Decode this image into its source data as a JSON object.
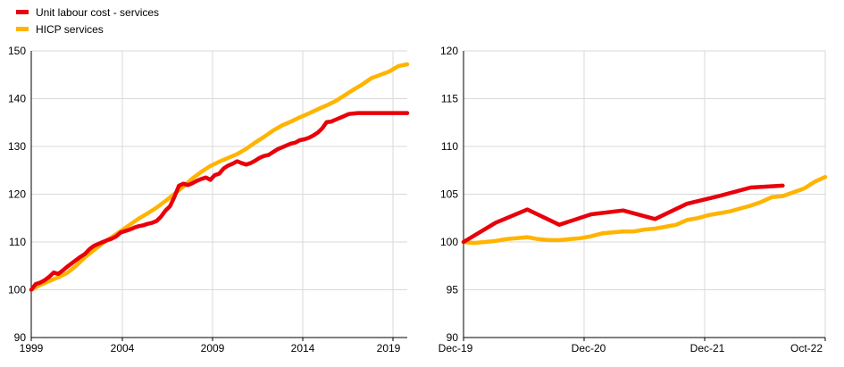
{
  "legend": [
    {
      "label": "Unit labour cost - services",
      "color": "#e8000b"
    },
    {
      "label": "HICP services",
      "color": "#ffb400"
    }
  ],
  "chart_data": [
    {
      "type": "line",
      "title": "",
      "xlabel": "",
      "ylabel": "",
      "x_ticks": [
        "1999",
        "2004",
        "2009",
        "2014",
        "2019"
      ],
      "xlim": [
        1999.0,
        2020.0
      ],
      "ylim": [
        90,
        150
      ],
      "y_ticks": [
        90,
        100,
        110,
        120,
        130,
        140,
        150
      ],
      "grid": true,
      "series": [
        {
          "name": "Unit labour cost - services",
          "color": "#e8000b",
          "x": [
            1999.0,
            1999.25,
            1999.5,
            1999.75,
            2000.0,
            2000.25,
            2000.5,
            2000.75,
            2001.0,
            2001.25,
            2001.5,
            2001.75,
            2002.0,
            2002.25,
            2002.5,
            2002.75,
            2003.0,
            2003.25,
            2003.5,
            2003.75,
            2004.0,
            2004.25,
            2004.5,
            2004.75,
            2005.0,
            2005.25,
            2005.5,
            2005.75,
            2006.0,
            2006.25,
            2006.5,
            2006.75,
            2007.0,
            2007.25,
            2007.5,
            2007.75,
            2008.0,
            2008.25,
            2008.5,
            2008.75,
            2009.0,
            2009.25,
            2009.5,
            2009.75,
            2010.0,
            2010.25,
            2010.5,
            2010.75,
            2011.0,
            2011.25,
            2011.5,
            2011.75,
            2012.0,
            2012.25,
            2012.5,
            2012.75,
            2013.0,
            2013.25,
            2013.5,
            2013.75,
            2014.0,
            2014.25,
            2014.5,
            2014.75,
            2015.0,
            2015.25,
            2015.5,
            2015.75,
            2016.0,
            2016.25,
            2016.5,
            2016.75,
            2017.0,
            2017.25,
            2017.5,
            2017.75,
            2018.0,
            2018.25,
            2018.5,
            2018.75,
            2019.0,
            2019.25,
            2019.5,
            2019.75,
            2020.0
          ],
          "y": [
            100.0,
            101.2,
            101.5,
            102.0,
            102.7,
            103.6,
            103.3,
            104.0,
            104.8,
            105.5,
            106.2,
            106.9,
            107.5,
            108.5,
            109.2,
            109.6,
            110.0,
            110.4,
            110.7,
            111.2,
            112.0,
            112.3,
            112.6,
            113.0,
            113.3,
            113.5,
            113.8,
            114.0,
            114.4,
            115.3,
            116.6,
            117.5,
            119.5,
            121.8,
            122.2,
            121.9,
            122.3,
            122.8,
            123.2,
            123.5,
            123.0,
            124.0,
            124.3,
            125.4,
            126.0,
            126.4,
            126.9,
            126.5,
            126.2,
            126.5,
            127.0,
            127.6,
            128.0,
            128.2,
            128.8,
            129.4,
            129.8,
            130.2,
            130.6,
            130.8,
            131.3,
            131.5,
            131.8,
            132.3,
            132.9,
            133.8,
            135.1,
            135.2,
            135.6,
            136.0,
            136.4,
            136.8,
            136.9,
            137.0,
            137.0,
            137.0,
            137.0,
            137.0,
            137.0,
            137.0,
            137.0,
            137.0,
            137.0,
            137.0,
            137.0
          ]
        },
        {
          "name": "HICP services",
          "color": "#ffb400",
          "x": [
            1999.0,
            1999.5,
            2000.0,
            2000.5,
            2001.0,
            2001.5,
            2002.0,
            2002.5,
            2003.0,
            2003.5,
            2004.0,
            2004.5,
            2005.0,
            2005.5,
            2006.0,
            2006.5,
            2007.0,
            2007.5,
            2008.0,
            2008.5,
            2009.0,
            2009.5,
            2010.0,
            2010.5,
            2011.0,
            2011.5,
            2012.0,
            2012.5,
            2013.0,
            2013.5,
            2014.0,
            2014.5,
            2015.0,
            2015.5,
            2016.0,
            2016.5,
            2017.0,
            2017.5,
            2018.0,
            2018.5,
            2019.0,
            2019.5,
            2020.0
          ],
          "y": [
            100.0,
            101.0,
            101.8,
            102.6,
            103.5,
            105.0,
            106.8,
            108.3,
            109.8,
            111.0,
            112.3,
            113.6,
            114.9,
            116.0,
            117.2,
            118.6,
            120.1,
            121.6,
            123.3,
            124.7,
            125.9,
            126.8,
            127.6,
            128.4,
            129.5,
            130.8,
            132.0,
            133.3,
            134.4,
            135.2,
            136.1,
            136.9,
            137.8,
            138.6,
            139.5,
            140.7,
            141.9,
            143.0,
            144.3,
            145.0,
            145.7,
            146.8,
            147.2
          ]
        }
      ]
    },
    {
      "type": "line",
      "title": "",
      "xlabel": "",
      "ylabel": "",
      "x_ticks": [
        "Dec-19",
        "Dec-20",
        "Dec-21",
        "Oct-22"
      ],
      "xlim": [
        "2019-12",
        "2022-10"
      ],
      "ylim": [
        90,
        120
      ],
      "y_ticks": [
        90,
        95,
        100,
        105,
        110,
        115,
        120
      ],
      "grid": true,
      "series": [
        {
          "name": "Unit labour cost - services",
          "color": "#e8000b",
          "x": [
            "2019-12",
            "2020-03",
            "2020-06",
            "2020-09",
            "2020-12",
            "2021-03",
            "2021-06",
            "2021-09",
            "2021-12",
            "2022-03",
            "2022-06"
          ],
          "y": [
            100.0,
            102.0,
            103.4,
            101.8,
            102.9,
            103.3,
            102.4,
            104.0,
            104.8,
            105.7,
            105.9
          ]
        },
        {
          "name": "HICP services",
          "color": "#ffb400",
          "x": [
            "2019-12",
            "2020-01",
            "2020-02",
            "2020-03",
            "2020-04",
            "2020-05",
            "2020-06",
            "2020-07",
            "2020-08",
            "2020-09",
            "2020-10",
            "2020-11",
            "2020-12",
            "2021-01",
            "2021-02",
            "2021-03",
            "2021-04",
            "2021-05",
            "2021-06",
            "2021-07",
            "2021-08",
            "2021-09",
            "2021-10",
            "2021-11",
            "2021-12",
            "2022-01",
            "2022-02",
            "2022-03",
            "2022-04",
            "2022-05",
            "2022-06",
            "2022-07",
            "2022-08",
            "2022-09",
            "2022-10"
          ],
          "y": [
            100.0,
            99.9,
            100.0,
            100.1,
            100.3,
            100.4,
            100.5,
            100.3,
            100.2,
            100.2,
            100.3,
            100.4,
            100.6,
            100.9,
            101.0,
            101.1,
            101.1,
            101.3,
            101.4,
            101.6,
            101.8,
            102.3,
            102.5,
            102.8,
            103.0,
            103.2,
            103.5,
            103.8,
            104.2,
            104.7,
            104.8,
            105.2,
            105.6,
            106.3,
            106.8
          ]
        }
      ]
    }
  ]
}
